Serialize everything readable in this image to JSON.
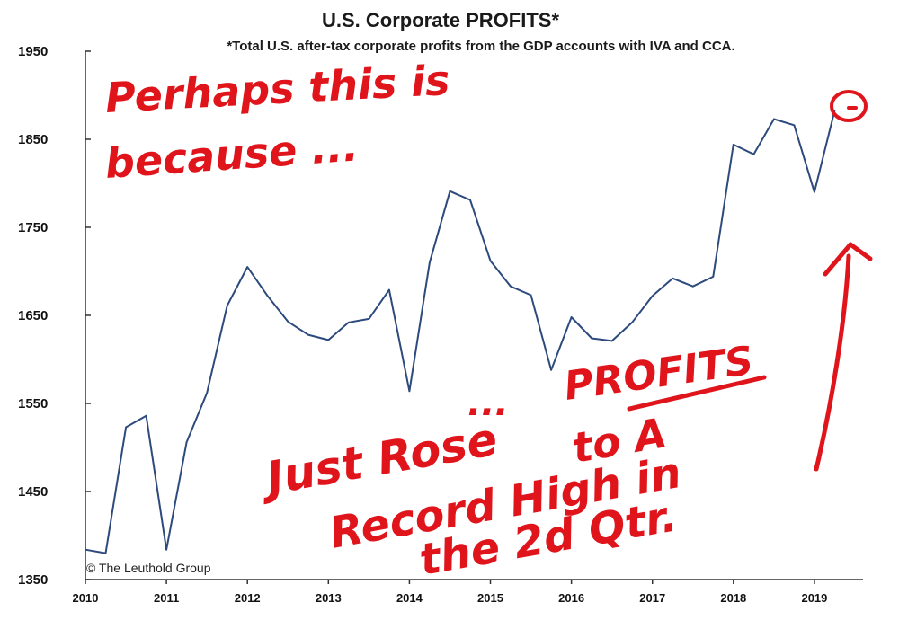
{
  "chart_data": {
    "type": "line",
    "title": "U.S. Corporate PROFITS*",
    "subtitle": "*Total U.S. after-tax corporate profits from the GDP accounts with IVA and CCA.",
    "xlabel": "",
    "ylabel": "",
    "ylim": [
      1350,
      1950
    ],
    "xlim": [
      2010,
      2019.6
    ],
    "yticks": [
      "1350",
      "1450",
      "1550",
      "1650",
      "1750",
      "1850",
      "1950"
    ],
    "xticks": [
      "2010",
      "2011",
      "2012",
      "2013",
      "2014",
      "2015",
      "2016",
      "2017",
      "2018",
      "2019"
    ],
    "grid": false,
    "series": [
      {
        "color": "#2c4a7c",
        "x": [
          2010.0,
          2010.25,
          2010.5,
          2010.75,
          2011.0,
          2011.25,
          2011.5,
          2011.75,
          2012.0,
          2012.25,
          2012.5,
          2012.75,
          2013.0,
          2013.25,
          2013.5,
          2013.75,
          2014.0,
          2014.25,
          2014.5,
          2014.75,
          2015.0,
          2015.25,
          2015.5,
          2015.75,
          2016.0,
          2016.25,
          2016.5,
          2016.75,
          2017.0,
          2017.25,
          2017.5,
          2017.75,
          2018.0,
          2018.25,
          2018.5,
          2018.75,
          2019.0,
          2019.25
        ],
        "y": [
          1384,
          1380,
          1523,
          1536,
          1384,
          1506,
          1562,
          1661,
          1705,
          1672,
          1643,
          1628,
          1622,
          1642,
          1646,
          1679,
          1564,
          1710,
          1791,
          1781,
          1712,
          1683,
          1673,
          1588,
          1648,
          1624,
          1621,
          1642,
          1672,
          1692,
          1683,
          1694,
          1844,
          1833,
          1873,
          1866,
          1790,
          1883
        ]
      }
    ]
  },
  "credit": "© The Leuthold Group",
  "annotation": {
    "line1": "Perhaps this is",
    "line2": "because ...",
    "dots": "...",
    "profits": "PROFITS",
    "to_a": "to A",
    "just_rose": "Just Rose",
    "record_high": "Record High in",
    "the_2d_qtr": "the 2d Qtr.",
    "color": "#e0141b"
  }
}
